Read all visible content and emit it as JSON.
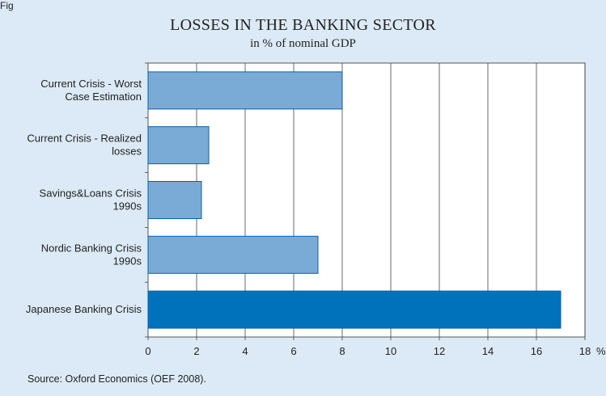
{
  "header_fragment": "Fig",
  "chart_data": {
    "type": "bar",
    "orientation": "horizontal",
    "title": "LOSSES IN THE BANKING SECTOR",
    "subtitle": "in % of nominal GDP",
    "categories": [
      [
        "Current Crisis - Worst",
        "Case Estimation"
      ],
      [
        "Current Crisis - Realized",
        "losses"
      ],
      [
        "Savings&Loans Crisis",
        "1990s"
      ],
      [
        "Nordic Banking Crisis",
        "1990s"
      ],
      [
        "Japanese Banking Crisis"
      ]
    ],
    "values": [
      8,
      2.5,
      2.2,
      7,
      17
    ],
    "bar_colors": [
      "#7aaad6",
      "#7aaad6",
      "#7aaad6",
      "#7aaad6",
      "#0072bc"
    ],
    "xlim": [
      0,
      18
    ],
    "xticks": [
      0,
      2,
      4,
      6,
      8,
      10,
      12,
      14,
      16,
      18
    ],
    "xunit": "%",
    "grid": true,
    "source": "Source: Oxford Economics (OEF 2008)."
  }
}
